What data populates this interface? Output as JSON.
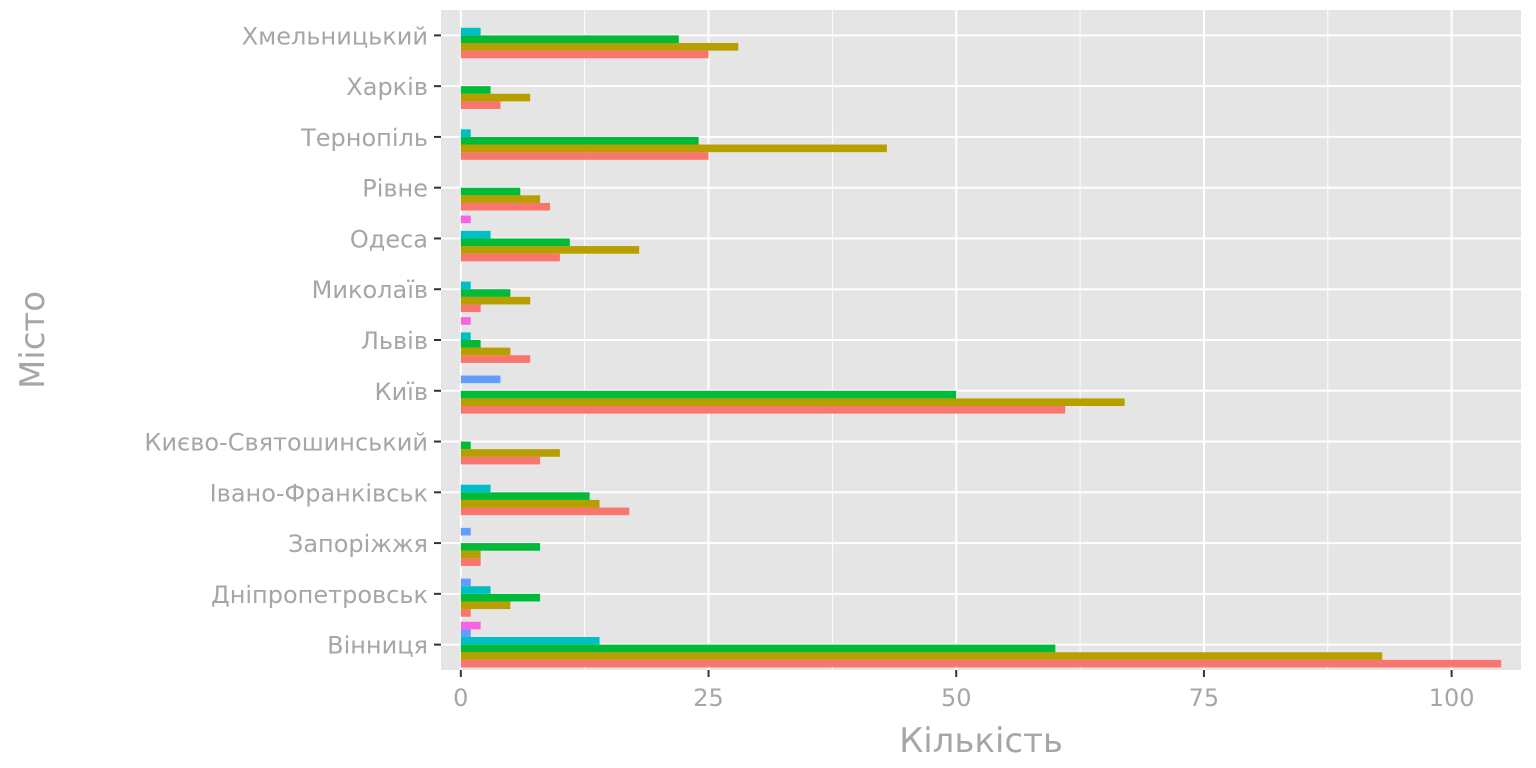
{
  "chart_data": {
    "type": "bar",
    "orientation": "horizontal",
    "xlabel": "Кількість",
    "ylabel": "Місто",
    "xlim": [
      -2,
      107
    ],
    "xticks": [
      0,
      25,
      50,
      75,
      100
    ],
    "grid": true,
    "legend": "none",
    "categories": [
      "Вінниця",
      "Дніпропетровськ",
      "Запоріжжя",
      "Івано-Франківськ",
      "Києво-Святошинський",
      "Київ",
      "Львів",
      "Миколаїв",
      "Одеса",
      "Рівне",
      "Тернопіль",
      "Харків",
      "Хмельницький"
    ],
    "series": [
      {
        "color": "#F8766D",
        "values": [
          105,
          1,
          2,
          17,
          8,
          61,
          7,
          2,
          10,
          9,
          25,
          4,
          25
        ]
      },
      {
        "color": "#B79F00",
        "values": [
          93,
          5,
          2,
          14,
          10,
          67,
          5,
          7,
          18,
          8,
          43,
          7,
          28
        ]
      },
      {
        "color": "#00BA38",
        "values": [
          60,
          8,
          8,
          13,
          1,
          50,
          2,
          5,
          11,
          6,
          24,
          3,
          22
        ]
      },
      {
        "color": "#00BFC4",
        "values": [
          14,
          3,
          0,
          3,
          0,
          0,
          1,
          1,
          3,
          0,
          1,
          0,
          2
        ]
      },
      {
        "color": "#619CFF",
        "values": [
          1,
          1,
          1,
          0,
          0,
          4,
          0,
          0,
          0,
          0,
          0,
          0,
          0
        ]
      },
      {
        "color": "#F564E3",
        "values": [
          2,
          0,
          0,
          0,
          0,
          0,
          1,
          0,
          1,
          0,
          0,
          0,
          0
        ]
      }
    ],
    "colors": {
      "panel": "#E5E5E5",
      "grid": "#FFFFFF",
      "text": "#A6A6A6",
      "tick": "#333333"
    }
  }
}
